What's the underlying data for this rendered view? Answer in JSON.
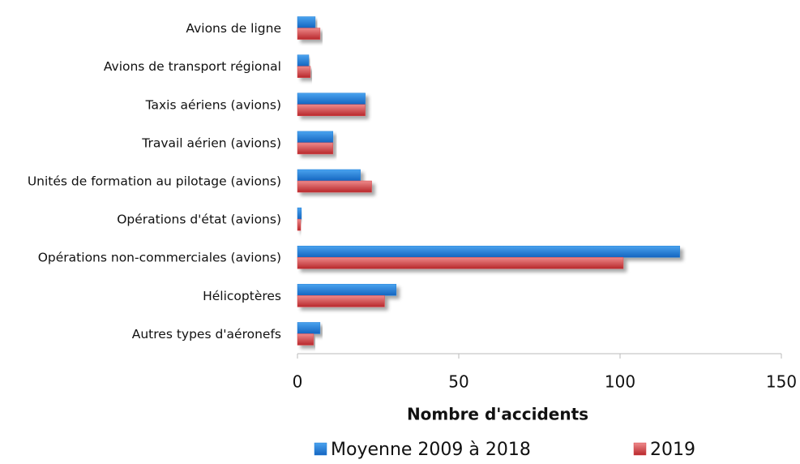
{
  "chart_data": {
    "type": "barh",
    "categories": [
      "Avions de ligne",
      "Avions de transport régional",
      "Taxis aériens (avions)",
      "Travail aérien (avions)",
      "Unités de formation au pilotage (avions)",
      "Opérations d'état (avions)",
      "Opérations non-commerciales (avions)",
      "Hélicoptères",
      "Autres types d'aéronefs"
    ],
    "series": [
      {
        "name": "Moyenne 2009 à 2018",
        "color": "#1e7fd8",
        "values": [
          5.5,
          3.5,
          21,
          11,
          19.5,
          1.2,
          118.5,
          30.6,
          7
        ]
      },
      {
        "name": "2019",
        "color": "#d9474a",
        "values": [
          7,
          4,
          21,
          11,
          23,
          1,
          101,
          27,
          5
        ]
      }
    ],
    "xlim": [
      0,
      150
    ],
    "xticks": [
      0,
      50,
      100,
      150
    ],
    "xlabel": "Nombre d'accidents",
    "grid": false,
    "legend": "bottom"
  }
}
